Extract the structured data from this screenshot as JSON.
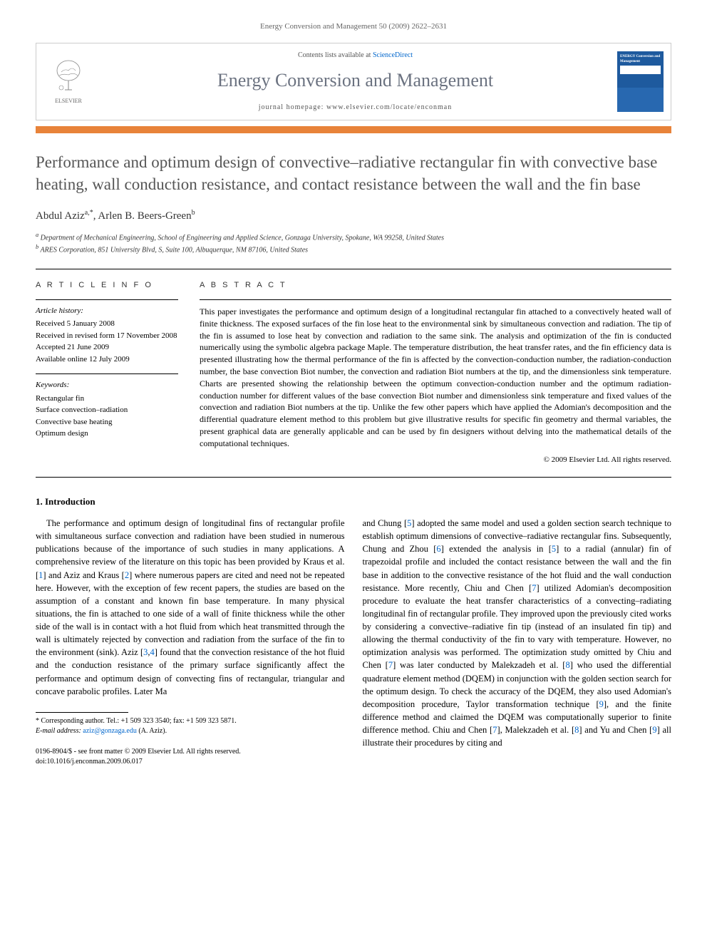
{
  "journal_ref": "Energy Conversion and Management 50 (2009) 2622–2631",
  "header": {
    "publisher": "ELSEVIER",
    "contents_prefix": "Contents lists available at ",
    "contents_link": "ScienceDirect",
    "journal_name": "Energy Conversion and Management",
    "homepage_label": "journal homepage: ",
    "homepage_url": "www.elsevier.com/locate/enconman",
    "cover_title": "ENERGY Conversion and Management"
  },
  "title": "Performance and optimum design of convective–radiative rectangular fin with convective base heating, wall conduction resistance, and contact resistance between the wall and the fin base",
  "authors": [
    {
      "name": "Abdul Aziz",
      "marks": "a,*"
    },
    {
      "name": "Arlen B. Beers-Green",
      "marks": "b"
    }
  ],
  "affiliations": [
    "Department of Mechanical Engineering, School of Engineering and Applied Science, Gonzaga University, Spokane, WA 99258, United States",
    "ARES Corporation, 851 University Blvd, S, Suite 100, Albuquerque, NM 87106, United States"
  ],
  "article_info": {
    "heading": "A R T I C L E   I N F O",
    "history_label": "Article history:",
    "history": "Received 5 January 2008\nReceived in revised form 17 November 2008\nAccepted 21 June 2009\nAvailable online 12 July 2009",
    "keywords_label": "Keywords:",
    "keywords": "Rectangular fin\nSurface convection–radiation\nConvective base heating\nOptimum design"
  },
  "abstract": {
    "heading": "A B S T R A C T",
    "text": "This paper investigates the performance and optimum design of a longitudinal rectangular fin attached to a convectively heated wall of finite thickness. The exposed surfaces of the fin lose heat to the environmental sink by simultaneous convection and radiation. The tip of the fin is assumed to lose heat by convection and radiation to the same sink. The analysis and optimization of the fin is conducted numerically using the symbolic algebra package Maple. The temperature distribution, the heat transfer rates, and the fin efficiency data is presented illustrating how the thermal performance of the fin is affected by the convection-conduction number, the radiation-conduction number, the base convection Biot number, the convection and radiation Biot numbers at the tip, and the dimensionless sink temperature. Charts are presented showing the relationship between the optimum convection-conduction number and the optimum radiation-conduction number for different values of the base convection Biot number and dimensionless sink temperature and fixed values of the convection and radiation Biot numbers at the tip. Unlike the few other papers which have applied the Adomian's decomposition and the differential quadrature element method to this problem but give illustrative results for specific fin geometry and thermal variables, the present graphical data are generally applicable and can be used by fin designers without delving into the mathematical details of the computational techniques.",
    "copyright": "© 2009 Elsevier Ltd. All rights reserved."
  },
  "section1": {
    "heading": "1. Introduction",
    "p1": "The performance and optimum design of longitudinal fins of rectangular profile with simultaneous surface convection and radiation have been studied in numerous publications because of the importance of such studies in many applications. A comprehensive review of the literature on this topic has been provided by Kraus et al. [1] and Aziz and Kraus [2] where numerous papers are cited and need not be repeated here. However, with the exception of few recent papers, the studies are based on the assumption of a constant and known fin base temperature. In many physical situations, the fin is attached to one side of a wall of finite thickness while the other side of the wall is in contact with a hot fluid from which heat transmitted through the wall is ultimately rejected by convection and radiation from the surface of the fin to the environment (sink). Aziz [3,4] found that the convection resistance of the hot fluid and the conduction resistance of the primary surface significantly affect the performance and optimum design of convecting fins of rectangular, triangular and concave parabolic profiles. Later Ma",
    "p2": "and Chung [5] adopted the same model and used a golden section search technique to establish optimum dimensions of convective–radiative rectangular fins. Subsequently, Chung and Zhou [6] extended the analysis in [5] to a radial (annular) fin of trapezoidal profile and included the contact resistance between the wall and the fin base in addition to the convective resistance of the hot fluid and the wall conduction resistance. More recently, Chiu and Chen [7] utilized Adomian's decomposition procedure to evaluate the heat transfer characteristics of a convecting–radiating longitudinal fin of rectangular profile. They improved upon the previously cited works by considering a convective–radiative fin tip (instead of an insulated fin tip) and allowing the thermal conductivity of the fin to vary with temperature. However, no optimization analysis was performed. The optimization study omitted by Chiu and Chen [7] was later conducted by Malekzadeh et al. [8] who used the differential quadrature element method (DQEM) in conjunction with the golden section search for the optimum design. To check the accuracy of the DQEM, they also used Adomian's decomposition procedure, Taylor transformation technique [9], and the finite difference method and claimed the DQEM was computationally superior to finite difference method. Chiu and Chen [7], Malekzadeh et al. [8] and Yu and Chen [9] all illustrate their procedures by citing and"
  },
  "footnote": {
    "corr": "* Corresponding author. Tel.: +1 509 323 3540; fax: +1 509 323 5871.",
    "email_label": "E-mail address: ",
    "email": "aziz@gonzaga.edu",
    "email_suffix": " (A. Aziz)."
  },
  "footer": {
    "issn": "0196-8904/$ - see front matter © 2009 Elsevier Ltd. All rights reserved.",
    "doi": "doi:10.1016/j.enconman.2009.06.017"
  },
  "colors": {
    "orange_bar": "#e8833a",
    "link": "#0066cc",
    "title_gray": "#555555",
    "journal_gray": "#6b7280",
    "cover_blue": "#1e5a9e"
  }
}
